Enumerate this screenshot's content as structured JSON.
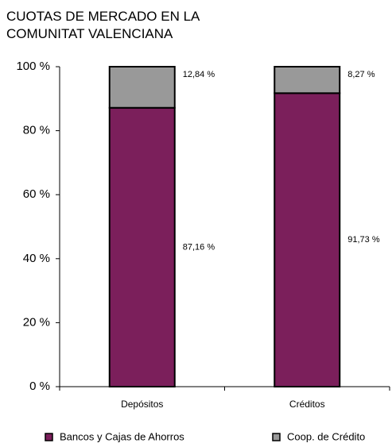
{
  "chart_data": {
    "type": "stacked_bar",
    "title": "CUOTAS DE MERCADO EN LA COMUNITAT VALENCIANA",
    "categories": [
      "Depósitos",
      "Créditos"
    ],
    "series": [
      {
        "name": "Bancos y Cajas de Ahorros",
        "color": "#7b1f5b",
        "values": [
          87.16,
          91.73
        ],
        "value_labels": [
          "87,16 %",
          "91,73 %"
        ]
      },
      {
        "name": "Coop. de Crédito",
        "color": "#999999",
        "values": [
          12.84,
          8.27
        ],
        "value_labels": [
          "12,84 %",
          "8,27 %"
        ]
      }
    ],
    "ylim": [
      0,
      100
    ],
    "yticks": [
      {
        "value": 0,
        "label": "0 %"
      },
      {
        "value": 20,
        "label": "20 %"
      },
      {
        "value": 40,
        "label": "40 %"
      },
      {
        "value": 60,
        "label": "60 %"
      },
      {
        "value": 80,
        "label": "80 %"
      },
      {
        "value": 100,
        "label": "100 %"
      }
    ],
    "grid": false,
    "legend": "bottom"
  }
}
